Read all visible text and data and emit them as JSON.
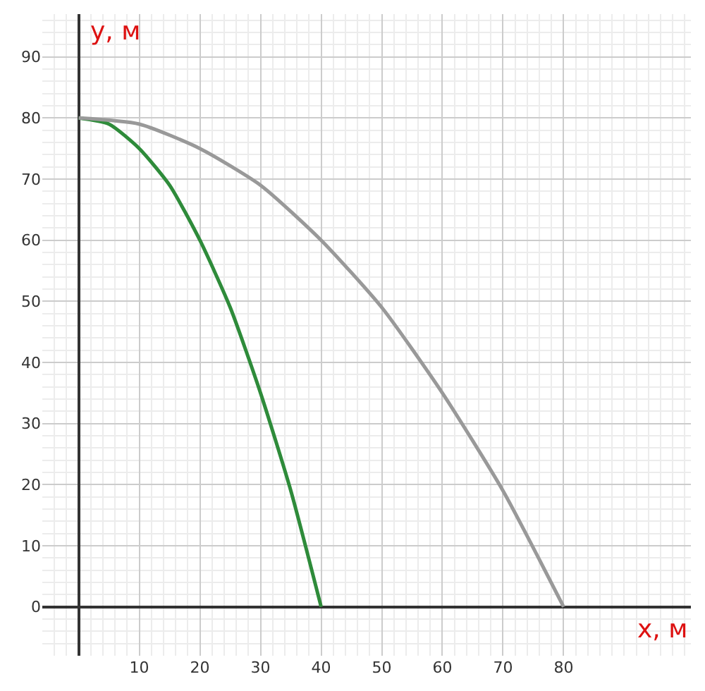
{
  "chart_data": {
    "type": "line",
    "xlabel": "x, м",
    "ylabel": "y, м",
    "xlim": [
      -6,
      101
    ],
    "ylim": [
      -8,
      97
    ],
    "xticks": [
      10,
      20,
      30,
      40,
      50,
      60,
      70,
      80
    ],
    "yticks": [
      0,
      10,
      20,
      30,
      40,
      50,
      60,
      70,
      80,
      90
    ],
    "grid": true,
    "marker": "none",
    "line_style": "solid",
    "series": [
      {
        "color": "#2e8b3a",
        "x": [
          0,
          5,
          10,
          15,
          20,
          25,
          30,
          35,
          40
        ],
        "values": [
          80,
          79,
          75,
          69,
          60,
          49,
          35,
          19,
          0
        ]
      },
      {
        "color": "#999999",
        "x": [
          0,
          10,
          20,
          30,
          40,
          50,
          60,
          70,
          80
        ],
        "values": [
          80,
          79,
          75,
          69,
          60,
          49,
          35,
          19,
          0
        ]
      }
    ]
  }
}
